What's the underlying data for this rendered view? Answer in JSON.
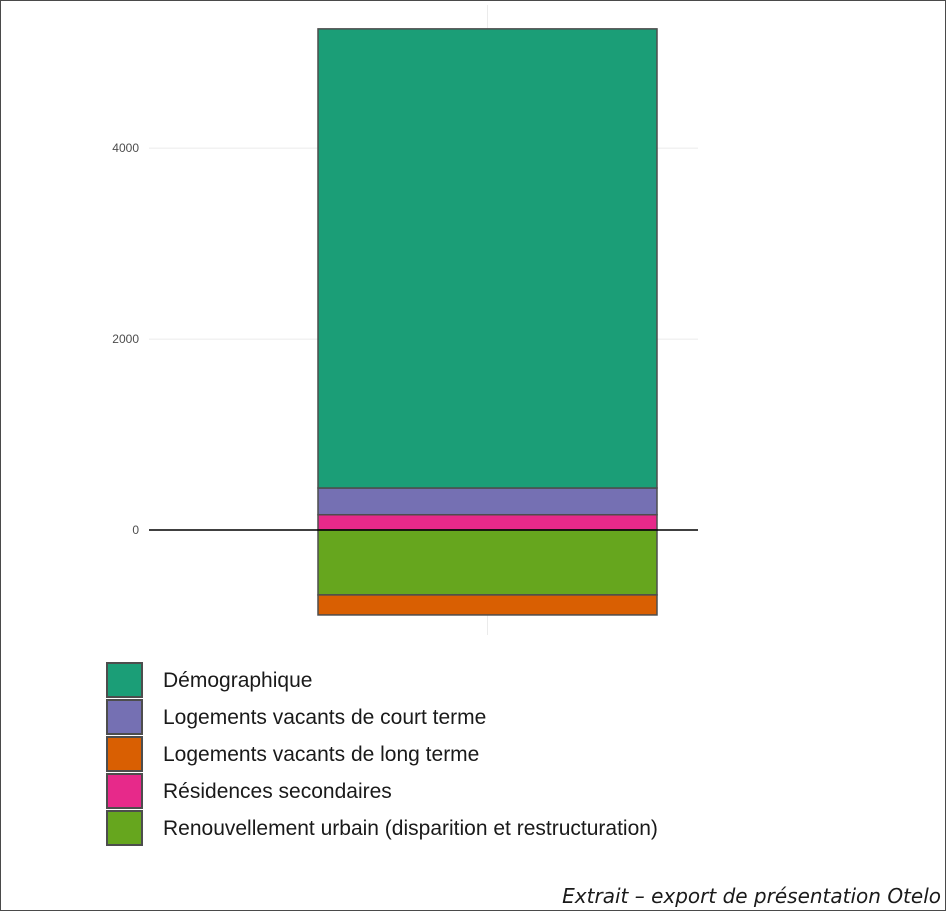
{
  "chart_data": {
    "type": "bar",
    "stacked": true,
    "categories": [
      ""
    ],
    "title": "",
    "xlabel": "",
    "ylabel": "",
    "ylim": [
      -1100,
      5500
    ],
    "yticks": [
      0,
      2000,
      4000
    ],
    "grid": true,
    "legend_position": "bottom-left",
    "series": [
      {
        "name": "Démographique",
        "values": [
          4810
        ],
        "color": "#1b9e77"
      },
      {
        "name": "Logements vacants de court terme",
        "values": [
          280
        ],
        "color": "#7570b3"
      },
      {
        "name": "Logements vacants de long terme",
        "values": [
          -210
        ],
        "color": "#d95f02"
      },
      {
        "name": "Résidences secondaires",
        "values": [
          160
        ],
        "color": "#e7298a"
      },
      {
        "name": "Renouvellement urbain (disparition et restructuration)",
        "values": [
          -680
        ],
        "color": "#66a61e"
      }
    ],
    "stack_order_positive": [
      "Résidences secondaires",
      "Logements vacants de court terme",
      "Démographique"
    ],
    "stack_order_negative": [
      "Renouvellement urbain (disparition et restructuration)",
      "Logements vacants de long terme"
    ]
  },
  "caption": "Extrait – export de présentation Otelo"
}
